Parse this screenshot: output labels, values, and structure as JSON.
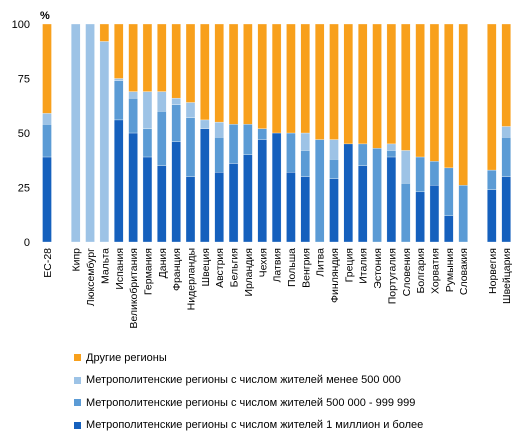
{
  "chart_data": {
    "type": "bar",
    "stacked": true,
    "unit_label": "%",
    "ylim": [
      0,
      100
    ],
    "yticks": [
      0,
      25,
      50,
      75,
      100
    ],
    "grid": false,
    "categories": [
      "ЕС-28",
      "",
      "Кипр",
      "Люксембург",
      "Мальта",
      "Испания",
      "Великобритания",
      "Германия",
      "Дания",
      "Франция",
      "Нидерланды",
      "Швеция",
      "Австрия",
      "Бельгия",
      "Ирландия",
      "Чехия",
      "Латвия",
      "Польша",
      "Венгрия",
      "Литва",
      "Финляндия",
      "Греция",
      "Италия",
      "Эстония",
      "Португалия",
      "Словения",
      "Болгария",
      "Хорватия",
      "Румыния",
      "Словакия",
      "",
      "Норвегия",
      "Швейцария"
    ],
    "series": [
      {
        "name": "Метрополитенские регионы с числом жителей 1 миллион и более",
        "color": "#1560BD",
        "values": [
          39,
          0,
          0,
          0,
          0,
          56,
          50,
          39,
          35,
          46,
          30,
          52,
          32,
          36,
          40,
          47,
          50,
          32,
          30,
          0,
          29,
          45,
          35,
          0,
          39,
          0,
          23,
          26,
          12,
          0,
          0,
          24,
          30
        ]
      },
      {
        "name": "Метрополитенские регионы с числом жителей 500 000 - 999 999",
        "color": "#5B9BD5",
        "values": [
          15,
          0,
          0,
          0,
          0,
          18,
          16,
          13,
          25,
          17,
          27,
          0,
          16,
          18,
          14,
          5,
          0,
          18,
          12,
          47,
          9,
          0,
          10,
          43,
          3,
          27,
          16,
          11,
          22,
          26,
          0,
          9,
          18
        ]
      },
      {
        "name": "Метрополитенские регионы с числом жителей менее 500 000",
        "color": "#9DC3E6",
        "values": [
          5,
          0,
          100,
          100,
          92,
          1,
          3,
          17,
          9,
          3,
          7,
          4,
          7,
          0,
          0,
          0,
          0,
          0,
          8,
          0,
          9,
          0,
          0,
          0,
          3,
          15,
          0,
          0,
          0,
          0,
          0,
          0,
          5
        ]
      },
      {
        "name": "Другие регионы",
        "color": "#F8A01C",
        "values": [
          41,
          0,
          0,
          0,
          8,
          25,
          31,
          31,
          31,
          34,
          36,
          44,
          45,
          46,
          46,
          48,
          50,
          50,
          50,
          53,
          53,
          55,
          55,
          57,
          55,
          58,
          61,
          63,
          66,
          74,
          0,
          67,
          47
        ]
      }
    ]
  },
  "legend": [
    {
      "label": "Другие регионы",
      "color": "#F8A01C"
    },
    {
      "label": "Метрополитенские регионы с числом жителей менее 500 000",
      "color": "#9DC3E6"
    },
    {
      "label": "Метрополитенские регионы с числом жителей 500 000 - 999 999",
      "color": "#5B9BD5"
    },
    {
      "label": "Метрополитенские регионы с числом жителей 1 миллион и более",
      "color": "#1560BD"
    }
  ]
}
